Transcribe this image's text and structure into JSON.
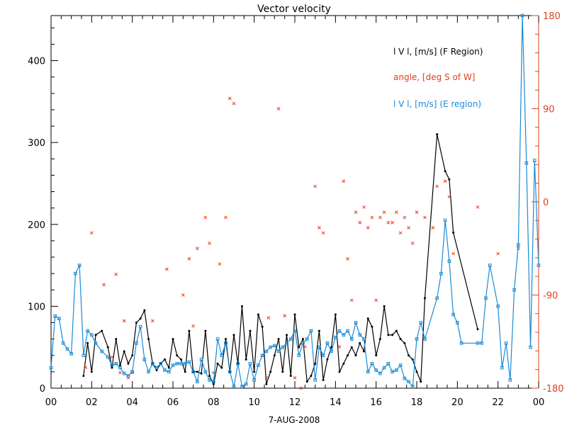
{
  "chart_data": {
    "type": "line",
    "title": "Vector velocity",
    "xlabel": "7-AUG-2008",
    "x_tick_labels": [
      "00",
      "02",
      "04",
      "06",
      "08",
      "10",
      "12",
      "14",
      "16",
      "18",
      "20",
      "22",
      "00"
    ],
    "xlim": [
      0,
      24
    ],
    "ylim": [
      0,
      455
    ],
    "y_tick_labels": [
      "0",
      "100",
      "200",
      "300",
      "400"
    ],
    "y_ticks": [
      0,
      100,
      200,
      300,
      400
    ],
    "y2lim": [
      -180,
      180
    ],
    "y2_tick_labels": [
      "-180",
      "-90",
      "0",
      "90",
      "180"
    ],
    "y2_ticks": [
      -180,
      -90,
      0,
      90,
      180
    ],
    "legend_position": "top-right",
    "colors": {
      "f_region": "#000000",
      "angle": "#e0401a",
      "e_region": "#1a8ad4",
      "axis": "#000000",
      "right_axis": "#e0401a"
    },
    "series": [
      {
        "name": "l V l, [m/s] (F Region)",
        "axis": "left",
        "style": "line+dot",
        "x": [
          1.6,
          1.8,
          2.0,
          2.2,
          2.5,
          2.8,
          3.0,
          3.2,
          3.4,
          3.6,
          3.8,
          4.0,
          4.2,
          4.4,
          4.6,
          4.8,
          5.0,
          5.2,
          5.4,
          5.6,
          5.8,
          6.0,
          6.2,
          6.4,
          6.6,
          6.8,
          7.0,
          7.2,
          7.4,
          7.6,
          7.8,
          8.0,
          8.2,
          8.4,
          8.6,
          8.8,
          9.0,
          9.2,
          9.4,
          9.6,
          9.8,
          10.0,
          10.2,
          10.4,
          10.6,
          10.8,
          11.0,
          11.2,
          11.4,
          11.6,
          11.8,
          12.0,
          12.2,
          12.4,
          12.6,
          12.8,
          13.0,
          13.2,
          13.4,
          13.6,
          13.8,
          14.0,
          14.2,
          14.4,
          14.6,
          14.8,
          15.0,
          15.2,
          15.4,
          15.6,
          15.8,
          16.0,
          16.2,
          16.4,
          16.6,
          16.8,
          17.0,
          17.2,
          17.4,
          17.6,
          17.8,
          18.0,
          18.2,
          18.4,
          19.0,
          19.4,
          19.6,
          19.8,
          21.0
        ],
        "y": [
          15,
          55,
          20,
          65,
          70,
          50,
          25,
          60,
          28,
          45,
          30,
          40,
          80,
          85,
          95,
          60,
          30,
          22,
          30,
          35,
          25,
          60,
          40,
          35,
          20,
          70,
          20,
          20,
          18,
          70,
          15,
          5,
          30,
          25,
          60,
          20,
          65,
          30,
          100,
          35,
          70,
          20,
          90,
          75,
          5,
          20,
          40,
          60,
          20,
          65,
          15,
          90,
          50,
          60,
          8,
          15,
          30,
          70,
          10,
          35,
          50,
          90,
          20,
          30,
          40,
          50,
          40,
          55,
          45,
          85,
          75,
          40,
          60,
          100,
          65,
          65,
          70,
          60,
          55,
          40,
          35,
          20,
          8,
          110,
          310,
          265,
          255,
          190,
          72
        ]
      },
      {
        "name": "angle, [deg S of W]",
        "axis": "right",
        "style": "cross",
        "x": [
          1.7,
          2.0,
          2.6,
          3.0,
          3.2,
          3.4,
          3.6,
          3.8,
          4.0,
          5.0,
          5.7,
          6.5,
          6.8,
          7.0,
          7.2,
          7.6,
          7.8,
          8.0,
          8.3,
          8.6,
          8.8,
          9.0,
          10.6,
          10.7,
          11.2,
          11.5,
          12.0,
          12.3,
          12.5,
          13.0,
          13.2,
          13.4,
          14.2,
          14.4,
          14.6,
          14.8,
          15.0,
          15.2,
          15.4,
          15.6,
          15.8,
          16.0,
          16.2,
          16.4,
          16.6,
          16.8,
          17.0,
          17.2,
          17.4,
          17.6,
          17.8,
          18.0,
          18.4,
          18.8,
          19.0,
          19.4,
          19.6,
          19.8,
          21.0,
          22.0,
          23.0
        ],
        "y": [
          -160,
          -30,
          -80,
          -150,
          -70,
          -165,
          -115,
          -170,
          -165,
          -115,
          -65,
          -90,
          -55,
          -120,
          -45,
          -15,
          -40,
          -165,
          -60,
          -15,
          100,
          95,
          -170,
          -112,
          90,
          -110,
          -170,
          -180,
          -140,
          15,
          -25,
          -30,
          -140,
          20,
          -55,
          -95,
          -10,
          -20,
          -5,
          -25,
          -15,
          -95,
          -15,
          -10,
          -20,
          -20,
          -10,
          -30,
          -15,
          -25,
          -40,
          -10,
          -15,
          -25,
          15,
          20,
          5,
          -50,
          -5,
          -50,
          -45
        ]
      },
      {
        "name": "l V l, [m/s] (E region)",
        "axis": "left",
        "style": "line+square",
        "x": [
          0.0,
          0.2,
          0.4,
          0.6,
          0.8,
          1.0,
          1.2,
          1.4,
          1.6,
          1.8,
          2.0,
          2.2,
          2.5,
          2.8,
          3.0,
          3.2,
          3.4,
          3.6,
          3.8,
          4.0,
          4.2,
          4.4,
          4.6,
          4.8,
          5.0,
          5.2,
          5.4,
          5.6,
          5.8,
          6.0,
          6.2,
          6.4,
          6.6,
          6.8,
          7.0,
          7.2,
          7.4,
          7.6,
          7.8,
          8.0,
          8.2,
          8.4,
          8.6,
          8.8,
          9.0,
          9.2,
          9.4,
          9.6,
          9.8,
          10.0,
          10.2,
          10.4,
          10.6,
          10.8,
          11.0,
          11.2,
          11.4,
          11.6,
          11.8,
          12.0,
          12.2,
          12.4,
          12.6,
          12.8,
          13.0,
          13.2,
          13.4,
          13.6,
          13.8,
          14.0,
          14.2,
          14.4,
          14.6,
          14.8,
          15.0,
          15.2,
          15.4,
          15.6,
          15.8,
          16.0,
          16.2,
          16.4,
          16.6,
          16.8,
          17.0,
          17.2,
          17.4,
          17.6,
          17.8,
          18.0,
          18.2,
          18.4,
          19.0,
          19.2,
          19.4,
          19.6,
          19.8,
          20.0,
          20.2,
          21.0,
          21.2,
          21.4,
          21.6,
          22.0,
          22.2,
          22.4,
          22.6,
          22.8,
          23.0,
          23.2,
          23.4,
          23.6,
          23.8,
          24.0
        ],
        "y": [
          25,
          88,
          85,
          55,
          48,
          42,
          140,
          150,
          40,
          70,
          65,
          55,
          45,
          38,
          28,
          30,
          25,
          18,
          15,
          20,
          55,
          75,
          35,
          20,
          30,
          25,
          30,
          22,
          20,
          28,
          30,
          30,
          30,
          32,
          20,
          8,
          35,
          20,
          10,
          8,
          60,
          40,
          55,
          20,
          2,
          30,
          2,
          5,
          30,
          10,
          28,
          40,
          45,
          50,
          52,
          45,
          50,
          55,
          60,
          70,
          40,
          55,
          60,
          70,
          10,
          50,
          40,
          55,
          45,
          62,
          70,
          65,
          70,
          60,
          80,
          65,
          60,
          20,
          30,
          22,
          18,
          25,
          30,
          20,
          22,
          28,
          12,
          8,
          2,
          60,
          80,
          60,
          110,
          140,
          205,
          155,
          90,
          80,
          55,
          55,
          55,
          110,
          150,
          100,
          25,
          55,
          10,
          120,
          175,
          455,
          275,
          50,
          278,
          150
        ]
      }
    ]
  }
}
